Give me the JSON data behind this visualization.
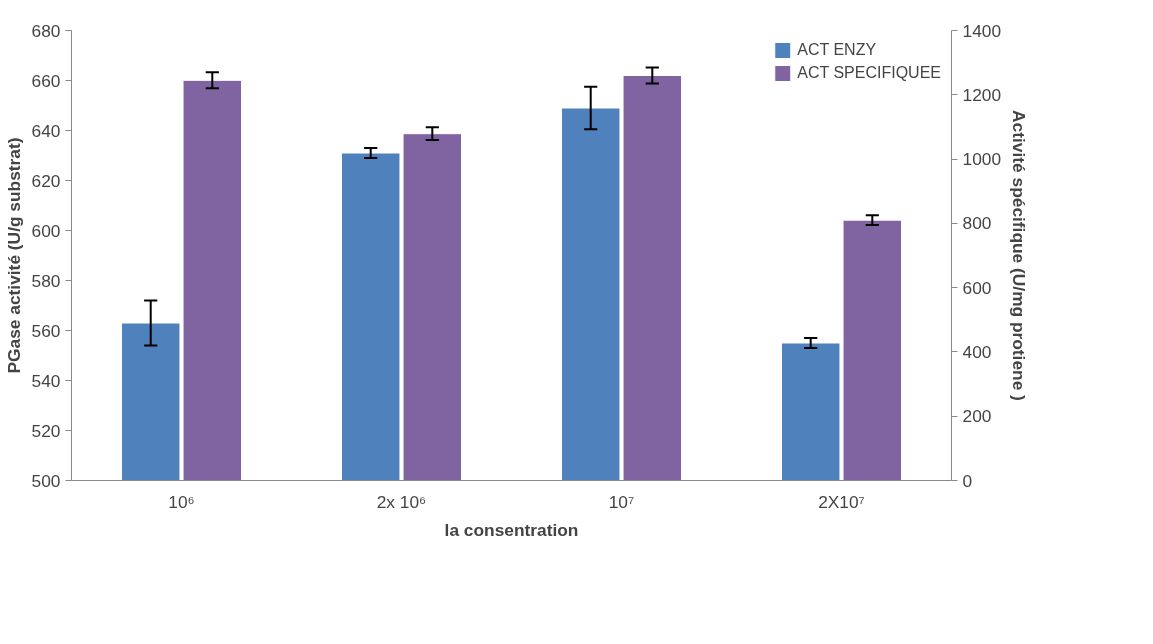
{
  "chart_data": {
    "type": "bar",
    "xlabel": "la consentration",
    "ylabel": "PGase activité (U/g substrat)",
    "y2label": "Activité spécifique (U/mg protiene )",
    "categories": [
      "10⁶",
      "2x 10⁶",
      "10⁷",
      "2X10⁷"
    ],
    "series": [
      {
        "name": "ACT ENZY",
        "color": "#4f81bd",
        "values": [
          563,
          631,
          649,
          555
        ],
        "errors": [
          9,
          2,
          8.5,
          2
        ]
      },
      {
        "name": "ACT SPECIFIQUEE",
        "color": "#8064a2",
        "values": [
          1245,
          1079,
          1260,
          810
        ],
        "errors": [
          25,
          20,
          25,
          15
        ],
        "axis": "y2"
      }
    ],
    "ylim": [
      500,
      680
    ],
    "yticks": [
      500,
      520,
      540,
      560,
      580,
      600,
      620,
      640,
      660,
      680
    ],
    "y2lim": [
      0,
      1400
    ],
    "y2ticks": [
      0,
      200,
      400,
      600,
      800,
      1000,
      1200,
      1400
    ],
    "grid": false,
    "legend": "top right"
  }
}
